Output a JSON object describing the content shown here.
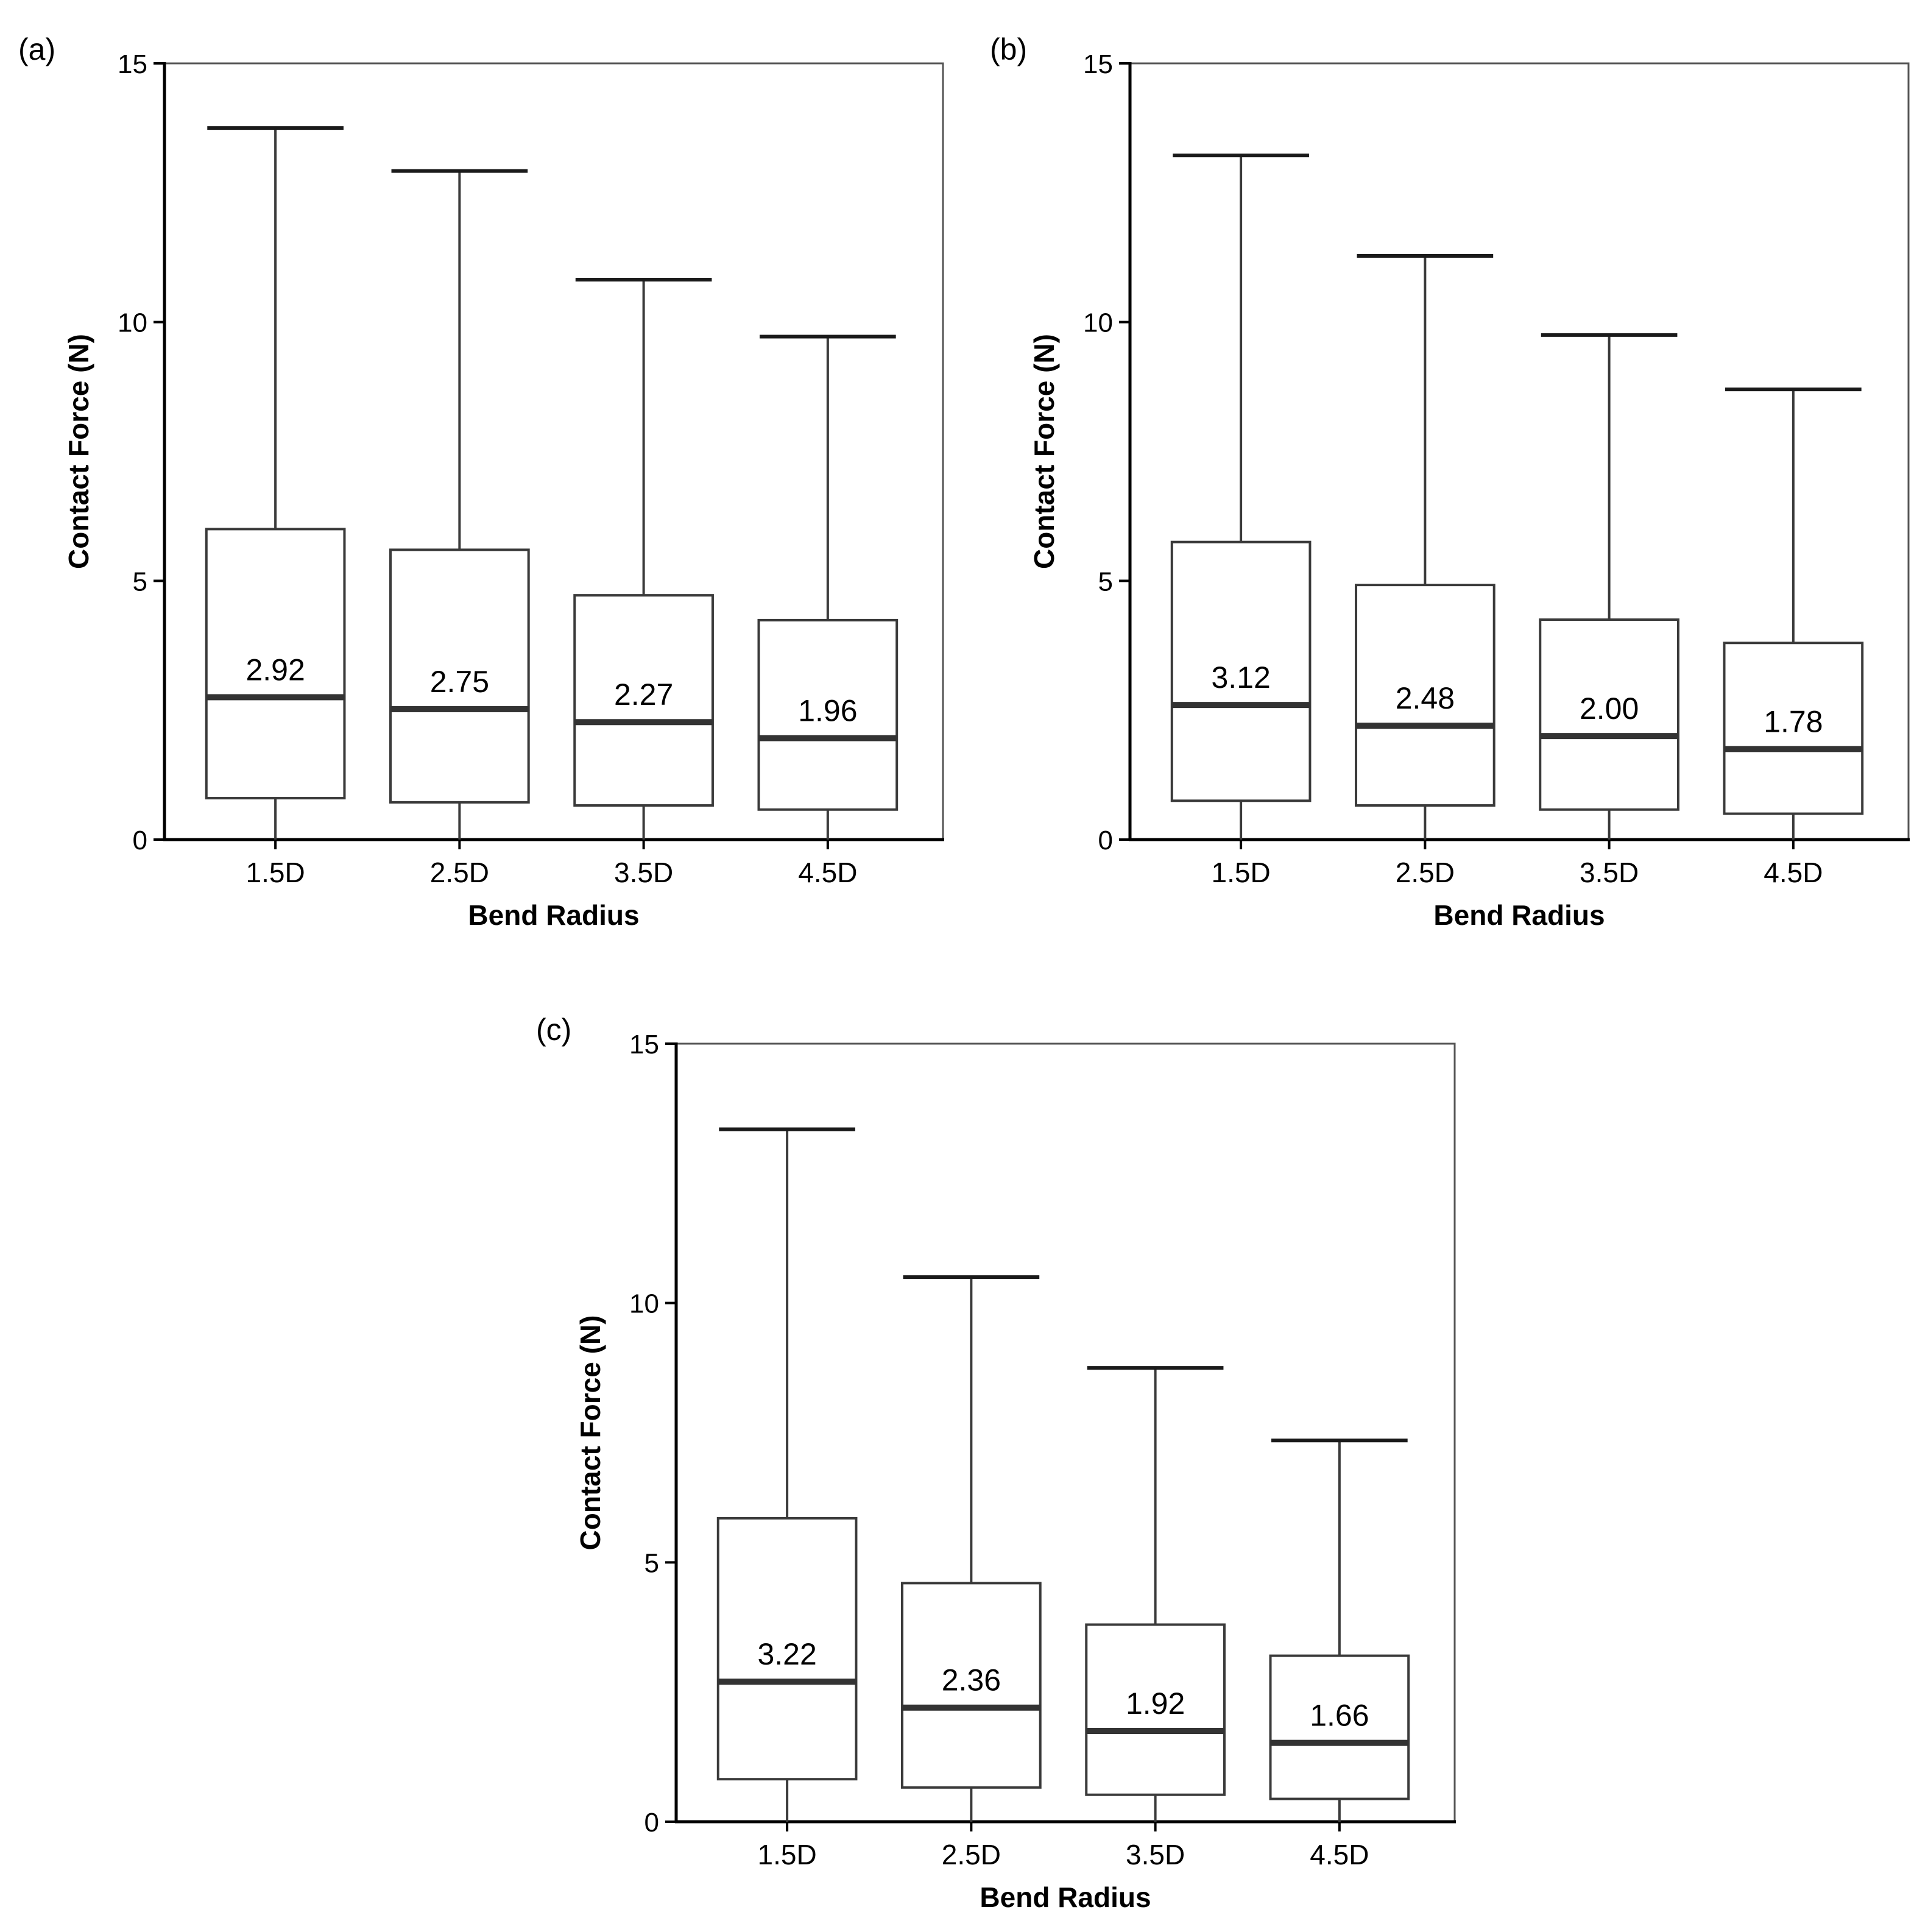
{
  "chart_data": [
    {
      "panel_label": "(a)",
      "type": "box",
      "xlabel": "Bend Radius",
      "ylabel": "Contact Force (N)",
      "ylim": [
        0,
        15
      ],
      "yticks": [
        "0",
        "5",
        "10",
        "15"
      ],
      "categories": [
        "1.5D",
        "2.5D",
        "3.5D",
        "4.5D"
      ],
      "boxes": [
        {
          "whisker_low": 0,
          "q1": 0.8,
          "median": 2.75,
          "q3": 6.0,
          "whisker_high": 13.75
        },
        {
          "whisker_low": 0,
          "q1": 0.72,
          "median": 2.52,
          "q3": 5.6,
          "whisker_high": 12.92
        },
        {
          "whisker_low": 0,
          "q1": 0.66,
          "median": 2.27,
          "q3": 4.72,
          "whisker_high": 10.82
        },
        {
          "whisker_low": 0,
          "q1": 0.58,
          "median": 1.96,
          "q3": 4.24,
          "whisker_high": 9.72
        }
      ],
      "labels": [
        "2.92",
        "2.75",
        "2.27",
        "1.96"
      ]
    },
    {
      "panel_label": "(b)",
      "type": "box",
      "xlabel": "Bend Radius",
      "ylabel": "Contact Force (N)",
      "ylim": [
        0,
        15
      ],
      "yticks": [
        "0",
        "5",
        "10",
        "15"
      ],
      "categories": [
        "1.5D",
        "2.5D",
        "3.5D",
        "4.5D"
      ],
      "boxes": [
        {
          "whisker_low": 0,
          "q1": 0.75,
          "median": 2.6,
          "q3": 5.75,
          "whisker_high": 13.22
        },
        {
          "whisker_low": 0,
          "q1": 0.66,
          "median": 2.2,
          "q3": 4.92,
          "whisker_high": 11.28
        },
        {
          "whisker_low": 0,
          "q1": 0.58,
          "median": 2.0,
          "q3": 4.25,
          "whisker_high": 9.75
        },
        {
          "whisker_low": 0,
          "q1": 0.5,
          "median": 1.75,
          "q3": 3.8,
          "whisker_high": 8.7
        }
      ],
      "labels": [
        "3.12",
        "2.48",
        "2.00",
        "1.78"
      ]
    },
    {
      "panel_label": "(c)",
      "type": "box",
      "xlabel": "Bend Radius",
      "ylabel": "Contact Force (N)",
      "ylim": [
        0,
        15
      ],
      "yticks": [
        "0",
        "5",
        "10",
        "15"
      ],
      "categories": [
        "1.5D",
        "2.5D",
        "3.5D",
        "4.5D"
      ],
      "boxes": [
        {
          "whisker_low": 0,
          "q1": 0.82,
          "median": 2.7,
          "q3": 5.85,
          "whisker_high": 13.35
        },
        {
          "whisker_low": 0,
          "q1": 0.66,
          "median": 2.2,
          "q3": 4.6,
          "whisker_high": 10.5
        },
        {
          "whisker_low": 0,
          "q1": 0.52,
          "median": 1.75,
          "q3": 3.8,
          "whisker_high": 8.75
        },
        {
          "whisker_low": 0,
          "q1": 0.44,
          "median": 1.52,
          "q3": 3.2,
          "whisker_high": 7.35
        }
      ],
      "labels": [
        "3.22",
        "2.36",
        "1.92",
        "1.66"
      ]
    }
  ]
}
